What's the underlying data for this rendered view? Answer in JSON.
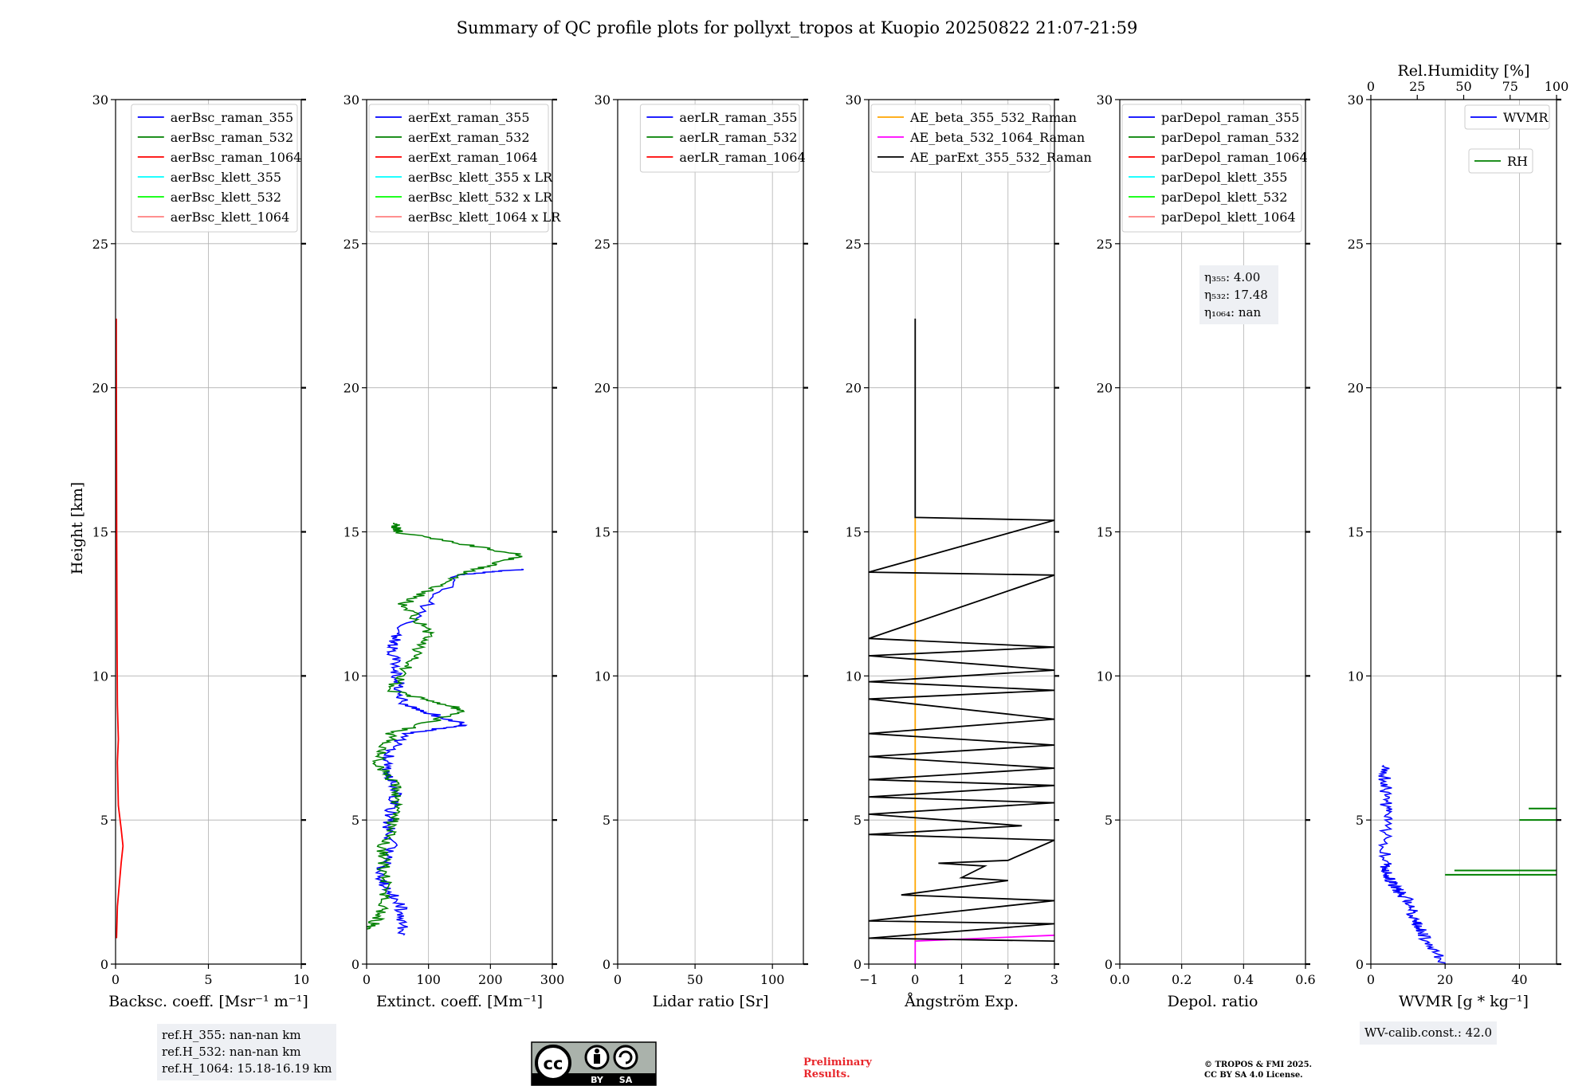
{
  "page_title": "Summary of QC profile plots for pollyxt_tropos at Kuopio 20250822 21:07-21:59",
  "shared_ylabel": "Height [km]",
  "colors": {
    "blue": "#0000ff",
    "green": "#008000",
    "red": "#ff0000",
    "cyan": "#00ffff",
    "lime": "#00ff00",
    "salmon": "#ff8080",
    "orange": "#ffa500",
    "magenta": "#ff00ff",
    "black": "#000000"
  },
  "chart_data": [
    {
      "id": "backscatter",
      "type": "line",
      "xlabel": "Backsc. coeff. [Msr⁻¹ m⁻¹]",
      "ylabel": "Height [km]",
      "xlim": [
        0,
        10
      ],
      "ylim": [
        0,
        30
      ],
      "xticks": [
        0,
        5,
        10
      ],
      "yticks": [
        0,
        5,
        10,
        15,
        20,
        25,
        30
      ],
      "grid": true,
      "legend_position": "top-right",
      "legend": [
        {
          "label": "aerBsc_raman_355",
          "color": "#0000ff"
        },
        {
          "label": "aerBsc_raman_532",
          "color": "#008000"
        },
        {
          "label": "aerBsc_raman_1064",
          "color": "#ff0000"
        },
        {
          "label": "aerBsc_klett_355",
          "color": "#00ffff"
        },
        {
          "label": "aerBsc_klett_532",
          "color": "#00ff00"
        },
        {
          "label": "aerBsc_klett_1064",
          "color": "#ff8080"
        }
      ],
      "series": [
        {
          "name": "aerBsc_raman_1064",
          "color": "#ff0000",
          "kind": "profile",
          "x": [
            0.05,
            0.1,
            0.3,
            0.4,
            0.3,
            0.15,
            0.1,
            0.15,
            0.1,
            0.08,
            0.06,
            0.05,
            0.04,
            0.04
          ],
          "y": [
            0.9,
            2.0,
            3.5,
            4.1,
            4.7,
            5.5,
            7.0,
            7.8,
            9.0,
            11.0,
            15.0,
            18.0,
            21.0,
            22.4
          ]
        }
      ]
    },
    {
      "id": "extinction",
      "type": "line",
      "xlabel": "Extinct. coeff. [Mm⁻¹]",
      "xlim": [
        0,
        300
      ],
      "ylim": [
        0,
        30
      ],
      "xticks": [
        0,
        100,
        200,
        300
      ],
      "yticks": [
        0,
        5,
        10,
        15,
        20,
        25,
        30
      ],
      "grid": true,
      "legend_position": "top-right",
      "legend": [
        {
          "label": "aerExt_raman_355",
          "color": "#0000ff"
        },
        {
          "label": "aerExt_raman_532",
          "color": "#008000"
        },
        {
          "label": "aerExt_raman_1064",
          "color": "#ff0000"
        },
        {
          "label": "aerBsc_klett_355 x LR",
          "color": "#00ffff"
        },
        {
          "label": "aerBsc_klett_532 x LR",
          "color": "#00ff00"
        },
        {
          "label": "aerBsc_klett_1064 x LR",
          "color": "#ff8080"
        }
      ],
      "series": [
        {
          "name": "aerExt_raman_355",
          "color": "#0000ff",
          "kind": "noisy",
          "y": [
            1.0,
            2.0,
            3.0,
            4.0,
            5.0,
            6.0,
            7.0,
            8.0,
            8.3,
            9.0,
            10.0,
            11.0,
            11.5,
            13.5,
            13.7
          ],
          "x": [
            60,
            55,
            20,
            40,
            35,
            50,
            30,
            60,
            160,
            60,
            50,
            40,
            50,
            150,
            250
          ]
        },
        {
          "name": "aerExt_raman_532",
          "color": "#008000",
          "kind": "noisy",
          "y": [
            1.2,
            2.0,
            3.0,
            4.0,
            5.0,
            6.0,
            7.0,
            8.0,
            8.8,
            9.5,
            10.5,
            11.5,
            12.5,
            13.5,
            14.2,
            15.0,
            15.3
          ],
          "x": [
            5,
            30,
            30,
            25,
            45,
            50,
            20,
            40,
            160,
            40,
            70,
            100,
            60,
            150,
            250,
            50,
            45
          ]
        }
      ]
    },
    {
      "id": "lidar-ratio",
      "type": "line",
      "xlabel": "Lidar ratio [Sr]",
      "xlim": [
        0,
        120
      ],
      "ylim": [
        0,
        30
      ],
      "xticks": [
        0,
        50,
        100
      ],
      "yticks": [
        0,
        5,
        10,
        15,
        20,
        25,
        30
      ],
      "grid": true,
      "legend_position": "top-right",
      "legend": [
        {
          "label": "aerLR_raman_355",
          "color": "#0000ff"
        },
        {
          "label": "aerLR_raman_532",
          "color": "#008000"
        },
        {
          "label": "aerLR_raman_1064",
          "color": "#ff0000"
        }
      ],
      "series": []
    },
    {
      "id": "angstrom",
      "type": "line",
      "xlabel": "Ångström Exp.",
      "xlim": [
        -1,
        3
      ],
      "ylim": [
        0,
        30
      ],
      "xticks": [
        -1,
        0,
        1,
        2,
        3
      ],
      "yticks": [
        0,
        5,
        10,
        15,
        20,
        25,
        30
      ],
      "grid": true,
      "legend_position": "top-right",
      "legend": [
        {
          "label": "AE_beta_355_532_Raman",
          "color": "#ffa500"
        },
        {
          "label": "AE_beta_532_1064_Raman",
          "color": "#ff00ff"
        },
        {
          "label": "AE_parExt_355_532_Raman",
          "color": "#000000"
        }
      ],
      "series": [
        {
          "name": "AE_beta_355_532_Raman",
          "color": "#ffa500",
          "x": [
            0,
            0,
            0
          ],
          "y": [
            0.8,
            10.0,
            15.5
          ]
        },
        {
          "name": "AE_beta_532_1064_Raman",
          "color": "#ff00ff",
          "x": [
            0,
            0,
            3.0
          ],
          "y": [
            0,
            0.8,
            1.0
          ]
        },
        {
          "name": "AE_parExt_355_532_Raman",
          "color": "#000000",
          "x": [
            0,
            0,
            3.0,
            -1,
            3.0,
            -1,
            3.0,
            -1,
            3.0,
            -1,
            3.0,
            -1,
            3.0,
            -1,
            3.0,
            -1,
            3.0,
            -1,
            3.0,
            -1,
            3.0,
            -1,
            2.3,
            -1,
            3.0,
            2.0,
            0.5,
            1.5,
            1.0,
            2.0,
            -0.3,
            3.0,
            -1,
            3.0,
            -1,
            3.0
          ],
          "y": [
            22.4,
            15.5,
            15.4,
            13.6,
            13.5,
            11.3,
            11.0,
            10.7,
            10.2,
            9.8,
            9.5,
            9.2,
            8.5,
            8.0,
            7.6,
            7.2,
            6.8,
            6.4,
            6.2,
            5.8,
            5.6,
            5.2,
            4.8,
            4.5,
            4.3,
            3.6,
            3.5,
            3.4,
            3.0,
            2.9,
            2.4,
            2.2,
            1.5,
            1.4,
            0.9,
            0.8
          ]
        }
      ]
    },
    {
      "id": "depol",
      "type": "line",
      "xlabel": "Depol. ratio",
      "xlim": [
        0.0,
        0.6
      ],
      "ylim": [
        0,
        30
      ],
      "xticks": [
        0.0,
        0.2,
        0.4,
        0.6
      ],
      "yticks": [
        0,
        5,
        10,
        15,
        20,
        25,
        30
      ],
      "grid": true,
      "legend_position": "top-right",
      "legend": [
        {
          "label": "parDepol_raman_355",
          "color": "#0000ff"
        },
        {
          "label": "parDepol_raman_532",
          "color": "#008000"
        },
        {
          "label": "parDepol_raman_1064",
          "color": "#ff0000"
        },
        {
          "label": "parDepol_klett_355",
          "color": "#00ffff"
        },
        {
          "label": "parDepol_klett_532",
          "color": "#00ff00"
        },
        {
          "label": "parDepol_klett_1064",
          "color": "#ff8080"
        }
      ],
      "annotation": [
        "η₃₅₅: 4.00",
        "η₅₃₂: 17.48",
        "η₁₀₆₄: nan"
      ],
      "series": []
    },
    {
      "id": "wvmr",
      "type": "line",
      "xlabel": "WVMR [g * kg⁻¹]",
      "xlim": [
        0,
        50
      ],
      "ylim": [
        0,
        30
      ],
      "xticks": [
        0,
        20,
        40
      ],
      "yticks": [
        0,
        5,
        10,
        15,
        20,
        25,
        30
      ],
      "top_xlabel": "Rel.Humidity [%]",
      "top_xlim": [
        0,
        100
      ],
      "top_xticks": [
        0,
        25,
        50,
        75,
        100
      ],
      "grid": true,
      "legend_position": "top-right",
      "legend": [
        {
          "label": "WVMR",
          "color": "#0000ff"
        },
        {
          "label": "RH",
          "color": "#008000"
        }
      ],
      "series": [
        {
          "name": "WVMR",
          "color": "#0000ff",
          "kind": "noisy",
          "x": [
            20,
            14,
            12,
            10,
            7,
            5,
            4,
            4,
            4,
            3.5
          ],
          "y": [
            0,
            1.0,
            1.5,
            2.2,
            2.6,
            3.0,
            3.5,
            5.0,
            6.0,
            6.9
          ]
        },
        {
          "name": "RH",
          "color": "#008000",
          "kind": "segments",
          "x": [
            [
              40,
              100
            ],
            [
              45,
              100
            ],
            [
              85,
              100
            ],
            [
              80,
              100
            ]
          ],
          "y": [
            [
              3.1,
              3.1
            ],
            [
              3.25,
              3.25
            ],
            [
              5.4,
              5.4
            ],
            [
              5.0,
              5.0
            ]
          ]
        }
      ]
    }
  ],
  "footer": {
    "refh_lines": [
      "ref.H_355: nan-nan km",
      "ref.H_532: nan-nan km",
      "ref.H_1064: 15.18-16.19 km"
    ],
    "cc_license_labels": [
      "BY",
      "SA"
    ],
    "preliminary_lines": [
      "Preliminary",
      "Results."
    ],
    "copyright_lines": [
      "© TROPOS & FMI 2025.",
      "CC BY SA 4.0 License."
    ],
    "wv_calib": "WV-calib.const.: 42.0"
  }
}
